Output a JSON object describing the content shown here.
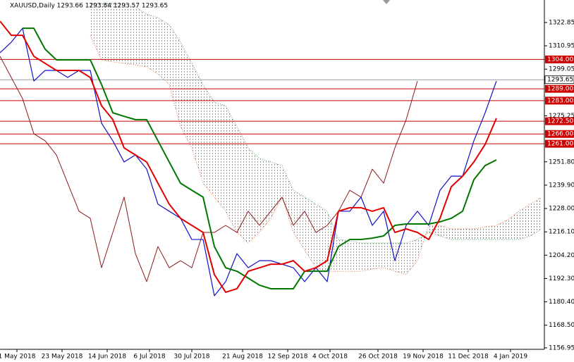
{
  "chart_data": {
    "type": "ichimoku",
    "title": "XAUUSD,Daily  1293.66 1293.84 1293.57 1293.65",
    "x": [
      0,
      4,
      8,
      12,
      16,
      20,
      24,
      28,
      32,
      36,
      40,
      44,
      48,
      52,
      56,
      60,
      64,
      68,
      72,
      76,
      80,
      84,
      88,
      92,
      96,
      100,
      104,
      108,
      112,
      116,
      120,
      124,
      128,
      132,
      136,
      140,
      144,
      148,
      152,
      156,
      160,
      164,
      168,
      172,
      176,
      180,
      184,
      188,
      192
    ],
    "xlim": [
      0,
      193
    ],
    "ylim": [
      1156.2,
      1334.3
    ],
    "yticks": [
      1322.85,
      1310.95,
      1299.05,
      1275.25,
      {
        "value": 1251.8,
        "label": "1251.80"
      },
      {
        "value": 1239.9,
        "label": "1239.90"
      },
      {
        "value": 1228,
        "label": "1228.00"
      },
      {
        "value": 1216.1,
        "label": "1216.10"
      },
      {
        "value": 1204.2,
        "label": "1204.20"
      },
      {
        "value": 1192.3,
        "label": "1192.30"
      },
      {
        "value": 1180.4,
        "label": "1180.40"
      },
      {
        "value": 1168.5,
        "label": "1168.50"
      },
      1156.95
    ],
    "xticks": [
      {
        "value": 6,
        "label": "1 May 2018"
      },
      {
        "value": 22,
        "label": "23 May 2018"
      },
      {
        "value": 38,
        "label": "14 Jun 2018"
      },
      {
        "value": 53,
        "label": "6 Jul 2018"
      },
      {
        "value": 68,
        "label": "30 Jul 2018"
      },
      {
        "value": 86,
        "label": "21 Aug 2018"
      },
      {
        "value": 102,
        "label": "12 Sep 2018"
      },
      {
        "value": 117,
        "label": "4 Oct 2018"
      },
      {
        "value": 134,
        "label": "26 Oct 2018"
      },
      {
        "value": 150,
        "label": "19 Nov 2018"
      },
      {
        "value": 166,
        "label": "11 Dec 2018"
      },
      {
        "value": 181,
        "label": "4 Jan 2019"
      }
    ],
    "cloud": {
      "up_color": "#2e8b2e",
      "down_color": "#e0561a",
      "span_a": [
        null,
        null,
        null,
        null,
        null,
        null,
        null,
        null,
        1316.3,
        1303.8,
        1302.7,
        1302.0,
        1301.3,
        1300.2,
        1296.6,
        1291.2,
        1269.7,
        1258.9,
        1240.9,
        1233.8,
        1226.6,
        1215.8,
        1210.4,
        1215.8,
        1223.0,
        1233.8,
        1215.8,
        1206.8,
        1197.8,
        1196.0,
        1196.0,
        1196.0,
        1196.0,
        1197.1,
        1197.8,
        1196.0,
        1194.3,
        1201.4,
        1219.4,
        1219.4,
        1217.6,
        1217.6,
        1217.6,
        1218.7,
        1219.4,
        1222.3,
        1226.6,
        1230.2,
        1233.8
      ],
      "span_b": [
        null,
        null,
        null,
        null,
        null,
        null,
        null,
        null,
        1332.5,
        1332.5,
        1332.5,
        1332.5,
        1330.7,
        1327.1,
        1325.3,
        1321.7,
        1312.8,
        1302.0,
        1291.2,
        1282.2,
        1280.4,
        1269.7,
        1258.9,
        1253.5,
        1251.7,
        1249.9,
        1237.3,
        1233.8,
        1230.2,
        1226.6,
        1212.2,
        1211.5,
        1210.4,
        1210.4,
        1210.4,
        1210.4,
        1210.4,
        1212.2,
        1215.8,
        1214.0,
        1212.2,
        1212.2,
        1212.2,
        1212.2,
        1212.2,
        1212.2,
        1212.2,
        1214.0,
        1217.6
      ]
    },
    "lines": [
      {
        "color": "#8b1a1a",
        "width": 1,
        "values": [
          1305.6,
          1294.8,
          1284.0,
          1266.1,
          1262.5,
          1255.3,
          1240.9,
          1226.6,
          1223.0,
          1197.8,
          1215.8,
          1233.8,
          1205.0,
          1190.7,
          1208.6,
          1197.8,
          1201.4,
          1197.8,
          1215.8,
          1215.8,
          1219.4,
          1215.8,
          1226.6,
          1219.4,
          1226.6,
          1233.8,
          1219.4,
          1226.6,
          1215.8,
          1219.4,
          1226.6,
          1237.3,
          1233.8,
          1248.1,
          1240.9,
          1258.9,
          1273.3,
          1293.0,
          null,
          null,
          null,
          null,
          null,
          null,
          null,
          null,
          null,
          null,
          null
        ]
      },
      {
        "color": "#1010c8",
        "width": 1.2,
        "values": [
          1307.4,
          1312.8,
          1319.9,
          1293.0,
          1298.4,
          1298.4,
          1294.8,
          1298.4,
          1298.4,
          1271.5,
          1262.5,
          1251.7,
          1255.3,
          1248.1,
          1230.2,
          1226.6,
          1223.0,
          1212.2,
          1212.2,
          1183.5,
          1190.7,
          1205.0,
          1197.8,
          1201.4,
          1201.4,
          1199.6,
          1197.8,
          1190.7,
          1197.8,
          1190.7,
          1226.6,
          1226.6,
          1233.8,
          1219.4,
          1226.6,
          1201.4,
          1219.4,
          1226.6,
          1219.4,
          1237.3,
          1244.5,
          1244.5,
          1262.5,
          1276.8,
          1293.0,
          null,
          null,
          null,
          null
        ]
      },
      {
        "color": "#007700",
        "width": 2,
        "values": [
          null,
          null,
          1319.9,
          1319.9,
          1309.2,
          1303.8,
          1303.8,
          1303.8,
          1303.8,
          1291.2,
          1276.8,
          1275.0,
          1273.3,
          1273.3,
          1262.5,
          1251.7,
          1240.9,
          1237.3,
          1233.8,
          1208.6,
          1197.8,
          1196.0,
          1192.5,
          1188.9,
          1187.1,
          1187.1,
          1187.1,
          1196.0,
          1196.0,
          1196.0,
          1208.6,
          1212.2,
          1212.2,
          1212.9,
          1214.0,
          1219.4,
          1220.1,
          1220.1,
          1220.1,
          1221.2,
          1223.0,
          1226.6,
          1242.7,
          1249.9,
          1252.8,
          null,
          null,
          null,
          null
        ]
      },
      {
        "color": "#e00000",
        "width": 2,
        "values": [
          1323.5,
          1316.3,
          1316.3,
          1305.6,
          1302.0,
          1298.4,
          1298.4,
          1298.4,
          1294.8,
          1280.4,
          1273.3,
          1258.9,
          1255.3,
          1251.7,
          1240.9,
          1230.2,
          1223.0,
          1219.4,
          1215.8,
          1194.3,
          1185.3,
          1187.1,
          1196.0,
          1197.8,
          1199.6,
          1199.6,
          1201.4,
          1196.0,
          1197.8,
          1201.4,
          1226.6,
          1228.4,
          1228.4,
          1226.6,
          1228.4,
          1215.8,
          1217.6,
          1215.8,
          1212.2,
          1223.0,
          1239.1,
          1244.5,
          1251.7,
          1260.7,
          1274.0,
          null,
          null,
          null,
          null
        ]
      }
    ],
    "levels": [
      {
        "value": 1304,
        "label": "1304.00"
      },
      {
        "value": 1289,
        "label": "1289.00"
      },
      {
        "value": 1283,
        "label": "1283.00"
      },
      {
        "value": 1272.5,
        "label": "1272.50"
      },
      {
        "value": 1266,
        "label": "1266.00"
      },
      {
        "value": 1261,
        "label": "1261.00"
      }
    ],
    "level_color": "#cc0000",
    "last_price": 1293.65
  }
}
